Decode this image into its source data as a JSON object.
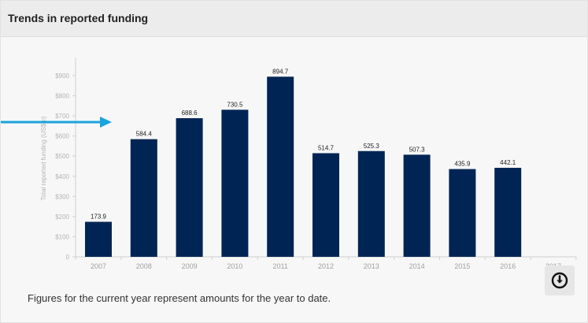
{
  "panel": {
    "title": "Trends in reported funding",
    "footnote": "Figures for the current year represent amounts for the year to date.",
    "download_icon": "arrow-down-circle-icon",
    "arrow_color": "#1aa3dc"
  },
  "chart_data": {
    "type": "bar",
    "title": "",
    "xlabel": "",
    "ylabel": "Total reported funding (US$m)",
    "categories": [
      "2007",
      "2008",
      "2009",
      "2010",
      "2011",
      "2012",
      "2013",
      "2014",
      "2015",
      "2016",
      "2017"
    ],
    "values": [
      173.9,
      584.4,
      688.6,
      730.5,
      894.7,
      514.7,
      525.3,
      507.3,
      435.9,
      442.1,
      null
    ],
    "data_labels": [
      "173.9",
      "584.4",
      "688.6",
      "730.5",
      "894.7",
      "514.7",
      "525.3",
      "507.3",
      "435.9",
      "442.1",
      ""
    ],
    "ylim": [
      0,
      900
    ],
    "yticks": [
      0,
      100,
      200,
      300,
      400,
      500,
      600,
      700,
      800,
      900
    ],
    "ytick_labels": [
      "0",
      "$100",
      "$200",
      "$300",
      "$400",
      "$500",
      "$600",
      "$700",
      "$800",
      "$900"
    ],
    "bar_color": "#002554",
    "grid": false,
    "legend": "none"
  }
}
